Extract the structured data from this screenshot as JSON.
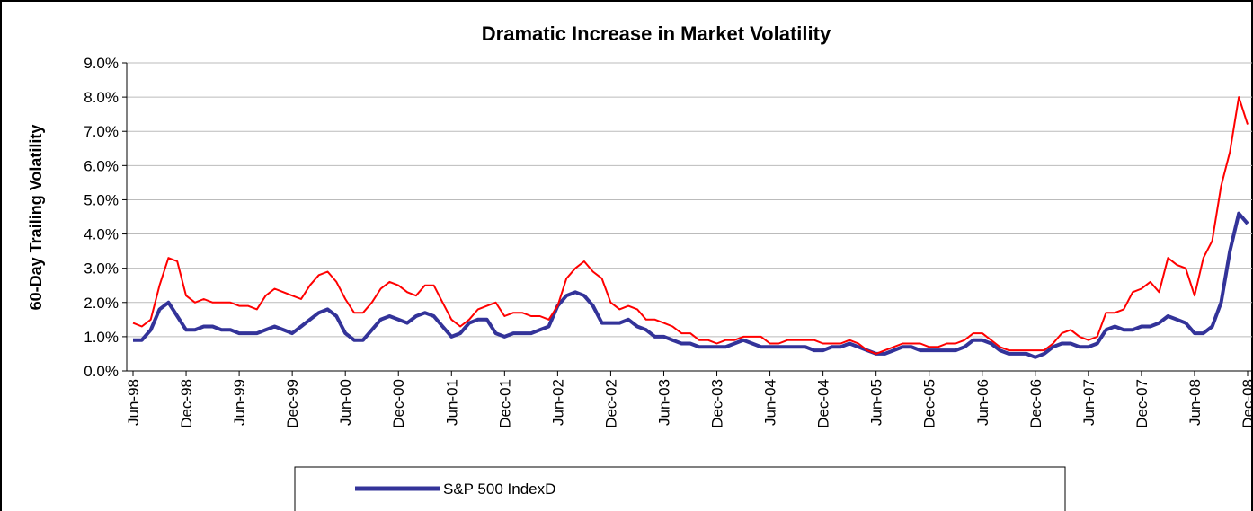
{
  "chart_data": {
    "type": "line",
    "title": "Dramatic Increase in Market Volatility",
    "y_label": "60-Day Trailing Volatility",
    "categories": [
      "Jun-98",
      null,
      null,
      null,
      null,
      null,
      "Dec-98",
      null,
      null,
      null,
      null,
      null,
      "Jun-99",
      null,
      null,
      null,
      null,
      null,
      "Dec-99",
      null,
      null,
      null,
      null,
      null,
      "Jun-00",
      null,
      null,
      null,
      null,
      null,
      "Dec-00",
      null,
      null,
      null,
      null,
      null,
      "Jun-01",
      null,
      null,
      null,
      null,
      null,
      "Dec-01",
      null,
      null,
      null,
      null,
      null,
      "Jun-02",
      null,
      null,
      null,
      null,
      null,
      "Dec-02",
      null,
      null,
      null,
      null,
      null,
      "Jun-03",
      null,
      null,
      null,
      null,
      null,
      "Dec-03",
      null,
      null,
      null,
      null,
      null,
      "Jun-04",
      null,
      null,
      null,
      null,
      null,
      "Dec-04",
      null,
      null,
      null,
      null,
      null,
      "Jun-05",
      null,
      null,
      null,
      null,
      null,
      "Dec-05",
      null,
      null,
      null,
      null,
      null,
      "Jun-06",
      null,
      null,
      null,
      null,
      null,
      "Dec-06",
      null,
      null,
      null,
      null,
      null,
      "Jun-07",
      null,
      null,
      null,
      null,
      null,
      "Dec-07",
      null,
      null,
      null,
      null,
      null,
      "Jun-08",
      null,
      null,
      null,
      null,
      null,
      "Dec-08"
    ],
    "series": [
      {
        "color": "#ff0000",
        "values": [
          1.4,
          1.3,
          1.5,
          2.5,
          3.3,
          3.2,
          2.2,
          2.0,
          2.1,
          2.0,
          2.0,
          2.0,
          1.9,
          1.9,
          1.8,
          2.2,
          2.4,
          2.3,
          2.2,
          2.1,
          2.5,
          2.8,
          2.9,
          2.6,
          2.1,
          1.7,
          1.7,
          2.0,
          2.4,
          2.6,
          2.5,
          2.3,
          2.2,
          2.5,
          2.5,
          2.0,
          1.5,
          1.3,
          1.5,
          1.8,
          1.9,
          2.0,
          1.6,
          1.7,
          1.7,
          1.6,
          1.6,
          1.5,
          1.9,
          2.7,
          3.0,
          3.2,
          2.9,
          2.7,
          2.0,
          1.8,
          1.9,
          1.8,
          1.5,
          1.5,
          1.4,
          1.3,
          1.1,
          1.1,
          0.9,
          0.9,
          0.8,
          0.9,
          0.9,
          1.0,
          1.0,
          1.0,
          0.8,
          0.8,
          0.9,
          0.9,
          0.9,
          0.9,
          0.8,
          0.8,
          0.8,
          0.9,
          0.8,
          0.6,
          0.5,
          0.6,
          0.7,
          0.8,
          0.8,
          0.8,
          0.7,
          0.7,
          0.8,
          0.8,
          0.9,
          1.1,
          1.1,
          0.9,
          0.7,
          0.6,
          0.6,
          0.6,
          0.6,
          0.6,
          0.8,
          1.1,
          1.2,
          1.0,
          0.9,
          1.0,
          1.7,
          1.7,
          1.8,
          2.3,
          2.4,
          2.6,
          2.3,
          3.3,
          3.1,
          3.0,
          2.2,
          3.3,
          3.8,
          5.4,
          6.4,
          8.0,
          7.2
        ]
      },
      {
        "name": "S&P 500 IndexD",
        "color": "#333399",
        "values": [
          0.9,
          0.9,
          1.2,
          1.8,
          2.0,
          1.6,
          1.2,
          1.2,
          1.3,
          1.3,
          1.2,
          1.2,
          1.1,
          1.1,
          1.1,
          1.2,
          1.3,
          1.2,
          1.1,
          1.3,
          1.5,
          1.7,
          1.8,
          1.6,
          1.1,
          0.9,
          0.9,
          1.2,
          1.5,
          1.6,
          1.5,
          1.4,
          1.6,
          1.7,
          1.6,
          1.3,
          1.0,
          1.1,
          1.4,
          1.5,
          1.5,
          1.1,
          1.0,
          1.1,
          1.1,
          1.1,
          1.2,
          1.3,
          1.9,
          2.2,
          2.3,
          2.2,
          1.9,
          1.4,
          1.4,
          1.4,
          1.5,
          1.3,
          1.2,
          1.0,
          1.0,
          0.9,
          0.8,
          0.8,
          0.7,
          0.7,
          0.7,
          0.7,
          0.8,
          0.9,
          0.8,
          0.7,
          0.7,
          0.7,
          0.7,
          0.7,
          0.7,
          0.6,
          0.6,
          0.7,
          0.7,
          0.8,
          0.7,
          0.6,
          0.5,
          0.5,
          0.6,
          0.7,
          0.7,
          0.6,
          0.6,
          0.6,
          0.6,
          0.6,
          0.7,
          0.9,
          0.9,
          0.8,
          0.6,
          0.5,
          0.5,
          0.5,
          0.4,
          0.5,
          0.7,
          0.8,
          0.8,
          0.7,
          0.7,
          0.8,
          1.2,
          1.3,
          1.2,
          1.2,
          1.3,
          1.3,
          1.4,
          1.6,
          1.5,
          1.4,
          1.1,
          1.1,
          1.3,
          2.0,
          3.5,
          4.6,
          4.3
        ]
      }
    ],
    "ylim": [
      0,
      9
    ],
    "yticks": [
      {
        "value": 0,
        "label": "0.0%"
      },
      {
        "value": 1,
        "label": "1.0%"
      },
      {
        "value": 2,
        "label": "2.0%"
      },
      {
        "value": 3,
        "label": "3.0%"
      },
      {
        "value": 4,
        "label": "4.0%"
      },
      {
        "value": 5,
        "label": "5.0%"
      },
      {
        "value": 6,
        "label": "6.0%"
      },
      {
        "value": 7,
        "label": "7.0%"
      },
      {
        "value": 8,
        "label": "8.0%"
      },
      {
        "value": 9,
        "label": "9.0%"
      }
    ],
    "grid": true
  }
}
